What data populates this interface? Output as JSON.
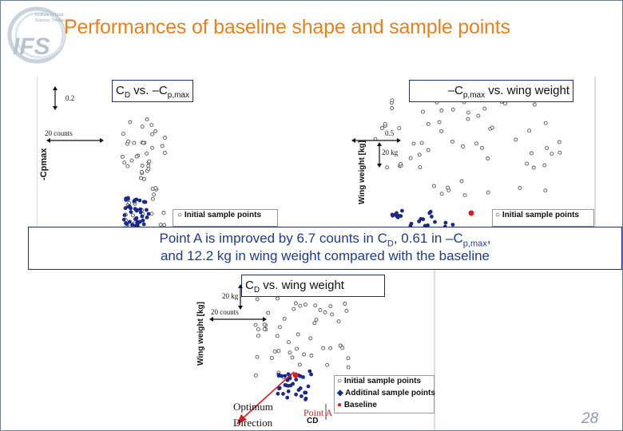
{
  "slide": {
    "title": "Performances of baseline shape and sample points",
    "logo_text": "IFS",
    "logo_small_lines": [
      "Institute of Fluid",
      "Science, Tohoku Univ."
    ],
    "page_number": "28"
  },
  "chart_top_left": {
    "caption_base": "C",
    "caption_sub": "D",
    "caption_mid": " vs. –C",
    "caption_sub2": "p,max",
    "ylabel": "-Cpmax",
    "scale_bar_value": "0.2",
    "scale_bar_counts": "20 counts",
    "legend_initial": "Initial sample points"
  },
  "chart_top_right": {
    "caption_pre": "–C",
    "caption_sub": "p,max",
    "caption_post": " vs. wing weight",
    "ylabel": "Wing weight [kg]",
    "scale_bar_value": "0.5",
    "scale_bar_kg": "20 kg",
    "legend_initial": "Initial sample points"
  },
  "banner": {
    "line1_pre": "Point A is improved by 6.7 counts in C",
    "line1_sub1": "D",
    "line1_mid": ", 0.61 in –C",
    "line1_sub2": "p,max",
    "line1_post": ",",
    "line2": "and 12.2 kg in wing weight compared with the baseline"
  },
  "chart_bottom": {
    "caption_pre": "C",
    "caption_sub": "D",
    "caption_post": " vs. wing weight",
    "ylabel": "Wing weight [kg]",
    "xlabel": "CD",
    "scale_bar_kg": "20 kg",
    "scale_bar_counts": "20 counts",
    "legend_initial": "Initial sample points",
    "legend_additional": "Additinal sample points",
    "legend_baseline": "Baseline",
    "optimum_label_line1": "Optimum",
    "optimum_label_line2": "Direction",
    "point_a_label": "Point A"
  },
  "colors": {
    "title": "#e3821f",
    "banner_text": "#1f3b8c",
    "initial_points": "#555555",
    "additional_points": "#1a2a8c",
    "baseline_point": "#d42020"
  }
}
